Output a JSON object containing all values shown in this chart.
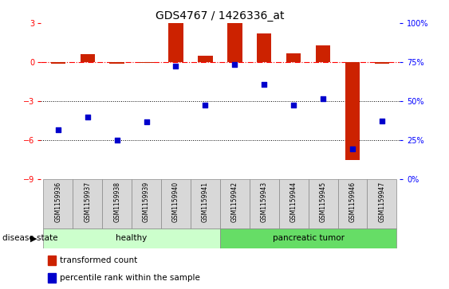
{
  "title": "GDS4767 / 1426336_at",
  "samples": [
    "GSM1159936",
    "GSM1159937",
    "GSM1159938",
    "GSM1159939",
    "GSM1159940",
    "GSM1159941",
    "GSM1159942",
    "GSM1159943",
    "GSM1159944",
    "GSM1159945",
    "GSM1159946",
    "GSM1159947"
  ],
  "red_bars": [
    -0.1,
    0.6,
    -0.15,
    -0.05,
    3.0,
    0.5,
    3.0,
    2.2,
    0.7,
    1.3,
    -7.5,
    -0.1
  ],
  "blue_squares": [
    -5.2,
    -4.2,
    -6.0,
    -4.6,
    -0.3,
    -3.3,
    -0.2,
    -1.7,
    -3.3,
    -2.8,
    -6.7,
    -4.5
  ],
  "ylim_left": [
    -9,
    3
  ],
  "ylim_right": [
    0,
    100
  ],
  "yticks_left": [
    3,
    0,
    -3,
    -6,
    -9
  ],
  "yticks_right": [
    100,
    75,
    50,
    25,
    0
  ],
  "red_color": "#cc2200",
  "blue_color": "#0000cc",
  "bar_width": 0.5,
  "square_size": 20,
  "legend_items": [
    {
      "label": "transformed count",
      "color": "#cc2200"
    },
    {
      "label": "percentile rank within the sample",
      "color": "#0000cc"
    }
  ],
  "healthy_label": "healthy",
  "tumor_label": "pancreatic tumor",
  "healthy_color": "#ccffcc",
  "tumor_color": "#66dd66",
  "disease_state_label": "disease state"
}
